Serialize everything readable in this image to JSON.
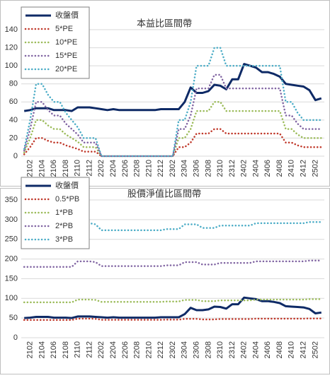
{
  "chart_data": [
    {
      "type": "line",
      "title": "本益比區間帶",
      "categories": [
        null,
        "2102",
        null,
        "2104",
        null,
        "2106",
        null,
        "2108",
        null,
        "2110",
        null,
        "2112",
        null,
        "2202",
        null,
        "2204",
        null,
        "2206",
        null,
        "2208",
        null,
        "2210",
        null,
        "2212",
        null,
        "2302",
        null,
        "2304",
        null,
        "2306",
        null,
        "2308",
        null,
        "2310",
        null,
        "2312",
        null,
        "2402",
        null,
        "2404",
        null,
        "2406",
        null,
        "2408",
        null,
        "2410",
        null,
        "2412",
        null,
        "2502",
        null
      ],
      "ylim": [
        0,
        140
      ],
      "yticks": [
        0,
        20,
        40,
        60,
        80,
        100,
        120,
        140
      ],
      "legend": "upper left",
      "series": [
        {
          "name": "收盤價",
          "color": "#0e2a66",
          "values": [
            50,
            51,
            53,
            53,
            53,
            51,
            51,
            51,
            50,
            54,
            54,
            54,
            53,
            52,
            51,
            52,
            51,
            51,
            51,
            51,
            51,
            51,
            51,
            52,
            52,
            52,
            52,
            60,
            76,
            70,
            70,
            72,
            79,
            78,
            74,
            85,
            85,
            102,
            100,
            98,
            93,
            93,
            91,
            88,
            80,
            79,
            78,
            77,
            73,
            62,
            64
          ]
        },
        {
          "name": "5*PE",
          "color": "#c0392b",
          "values": [
            2,
            10,
            20,
            20,
            17,
            15,
            15,
            12,
            10,
            8,
            5,
            5,
            5,
            0,
            0,
            0,
            0,
            0,
            0,
            0,
            0,
            0,
            0,
            0,
            0,
            0,
            10,
            10,
            15,
            25,
            25,
            25,
            30,
            30,
            25,
            25,
            25,
            25,
            25,
            25,
            25,
            25,
            25,
            25,
            15,
            15,
            12,
            10,
            10,
            10,
            10
          ]
        },
        {
          "name": "10*PE",
          "color": "#9bbb59",
          "values": [
            4,
            20,
            40,
            40,
            34,
            30,
            30,
            24,
            20,
            16,
            10,
            10,
            10,
            0,
            0,
            0,
            0,
            0,
            0,
            0,
            0,
            0,
            0,
            0,
            0,
            0,
            20,
            20,
            30,
            50,
            50,
            50,
            60,
            60,
            50,
            50,
            50,
            50,
            50,
            50,
            50,
            50,
            50,
            50,
            30,
            30,
            24,
            20,
            20,
            20,
            20
          ]
        },
        {
          "name": "15*PE",
          "color": "#8064a2",
          "values": [
            6,
            30,
            60,
            60,
            51,
            45,
            45,
            36,
            30,
            24,
            15,
            15,
            15,
            0,
            0,
            0,
            0,
            0,
            0,
            0,
            0,
            0,
            0,
            0,
            0,
            0,
            30,
            30,
            45,
            75,
            75,
            75,
            90,
            90,
            75,
            75,
            75,
            75,
            75,
            75,
            75,
            75,
            75,
            75,
            45,
            45,
            36,
            30,
            30,
            30,
            30
          ]
        },
        {
          "name": "20*PE",
          "color": "#4bacc6",
          "values": [
            8,
            40,
            80,
            80,
            68,
            60,
            60,
            48,
            40,
            32,
            20,
            20,
            20,
            0,
            0,
            0,
            0,
            0,
            0,
            0,
            0,
            0,
            0,
            0,
            0,
            0,
            40,
            40,
            60,
            100,
            100,
            100,
            120,
            120,
            100,
            100,
            100,
            100,
            100,
            100,
            100,
            100,
            100,
            100,
            60,
            60,
            48,
            40,
            40,
            40,
            40
          ]
        }
      ]
    },
    {
      "type": "line",
      "title": "股價淨值比區間帶",
      "categories": [
        null,
        "2102",
        null,
        "2104",
        null,
        "2106",
        null,
        "2108",
        null,
        "2110",
        null,
        "2112",
        null,
        "2202",
        null,
        "2204",
        null,
        "2206",
        null,
        "2208",
        null,
        "2210",
        null,
        "2212",
        null,
        "2302",
        null,
        "2304",
        null,
        "2306",
        null,
        "2308",
        null,
        "2310",
        null,
        "2312",
        null,
        "2402",
        null,
        "2404",
        null,
        "2406",
        null,
        "2408",
        null,
        "2410",
        null,
        "2412",
        null,
        "2502",
        null
      ],
      "ylim": [
        0,
        350
      ],
      "yticks": [
        0,
        50,
        100,
        150,
        200,
        250,
        300,
        350
      ],
      "legend": "upper left",
      "series": [
        {
          "name": "收盤價",
          "color": "#0e2a66",
          "values": [
            50,
            51,
            53,
            53,
            53,
            51,
            51,
            51,
            50,
            54,
            54,
            54,
            53,
            52,
            51,
            52,
            51,
            51,
            51,
            51,
            51,
            51,
            51,
            52,
            52,
            52,
            52,
            60,
            76,
            70,
            70,
            72,
            79,
            78,
            74,
            85,
            85,
            102,
            100,
            98,
            93,
            93,
            91,
            88,
            80,
            79,
            78,
            77,
            73,
            62,
            64
          ]
        },
        {
          "name": "0.5*PB",
          "color": "#c0392b",
          "values": [
            45,
            45,
            45,
            45,
            45,
            45,
            45,
            45,
            45,
            48.5,
            48.5,
            48.5,
            48,
            45.5,
            45.5,
            45.5,
            45.5,
            45.5,
            45.5,
            45.5,
            45.5,
            45.5,
            45.5,
            45.5,
            46,
            46,
            46,
            48,
            48,
            48,
            46.5,
            46.5,
            46.5,
            47.5,
            47.5,
            47.5,
            47.5,
            47.5,
            47.5,
            48.5,
            48.5,
            48.5,
            48.5,
            48.5,
            48.5,
            48.5,
            48.5,
            48.5,
            49,
            49,
            49
          ]
        },
        {
          "name": "1*PB",
          "color": "#9bbb59",
          "values": [
            90,
            90,
            90,
            90,
            90,
            90,
            90,
            90,
            90,
            97,
            97,
            97,
            96,
            91,
            91,
            91,
            91,
            91,
            91,
            91,
            91,
            91,
            91,
            91,
            92,
            92,
            92,
            96,
            96,
            96,
            93,
            93,
            93,
            95,
            95,
            95,
            95,
            95,
            95,
            97,
            97,
            97,
            97,
            97,
            97,
            97,
            97,
            97,
            98,
            98,
            98
          ]
        },
        {
          "name": "2*PB",
          "color": "#8064a2",
          "values": [
            180,
            180,
            180,
            180,
            180,
            180,
            180,
            180,
            180,
            194,
            194,
            194,
            192,
            182,
            182,
            182,
            182,
            182,
            182,
            182,
            182,
            182,
            182,
            182,
            184,
            184,
            184,
            192,
            192,
            192,
            186,
            186,
            186,
            190,
            190,
            190,
            190,
            190,
            190,
            194,
            194,
            194,
            194,
            194,
            194,
            194,
            194,
            194,
            196,
            196,
            196
          ]
        },
        {
          "name": "3*PB",
          "color": "#4bacc6",
          "values": [
            270,
            270,
            270,
            270,
            270,
            270,
            270,
            270,
            270,
            291,
            291,
            291,
            288,
            273,
            273,
            273,
            273,
            273,
            273,
            273,
            273,
            273,
            273,
            273,
            276,
            276,
            276,
            288,
            288,
            288,
            279,
            279,
            279,
            285,
            285,
            285,
            285,
            285,
            285,
            291,
            291,
            291,
            291,
            291,
            291,
            291,
            291,
            291,
            294,
            294,
            294
          ]
        }
      ]
    }
  ]
}
